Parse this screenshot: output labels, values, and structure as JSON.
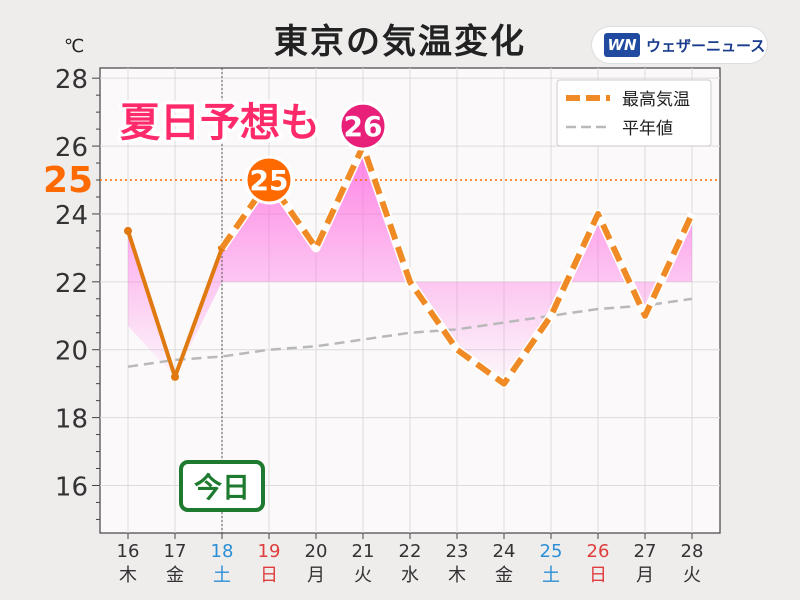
{
  "title": "東京の気温変化",
  "unit": "℃",
  "brand": {
    "logo": "WN",
    "name": "ウェザーニュース"
  },
  "callout": "夏日予想も",
  "today_label": "今日",
  "threshold": {
    "value": 25,
    "label": "25"
  },
  "peak_badges": [
    {
      "index": 3,
      "label": "25"
    },
    {
      "index": 5,
      "label": "26"
    }
  ],
  "colors": {
    "observed": "#e07a10",
    "forecast": "#f08a24",
    "normal": "#b9b9b9",
    "threshold": "#ff6a00",
    "highlight": "#ff66e0",
    "badge25": "#ff6a00",
    "badge26": "#e8207a",
    "today": "#1e7a2e",
    "callout": "#ff2a6a",
    "saturday": "#2b8fd6",
    "sunday": "#e03c3c"
  },
  "chart_data": {
    "type": "line",
    "categories": [
      "16",
      "17",
      "18",
      "19",
      "20",
      "21",
      "22",
      "23",
      "24",
      "25",
      "26",
      "27",
      "28"
    ],
    "weekdays": [
      "木",
      "金",
      "土",
      "日",
      "月",
      "火",
      "水",
      "木",
      "金",
      "土",
      "日",
      "月",
      "火"
    ],
    "weekday_types": [
      "",
      "",
      "sat",
      "sun",
      "",
      "",
      "",
      "",
      "",
      "sat",
      "sun",
      "",
      ""
    ],
    "today_index": 2,
    "series": [
      {
        "name": "最高気温",
        "values": [
          23.5,
          19.2,
          23.0,
          25.0,
          23.0,
          26.0,
          22.0,
          20.0,
          19.0,
          21.0,
          24.0,
          21.0,
          24.0
        ]
      },
      {
        "name": "平年値",
        "values": [
          19.5,
          19.7,
          19.8,
          20.0,
          20.1,
          20.3,
          20.5,
          20.6,
          20.8,
          21.0,
          21.2,
          21.3,
          21.5
        ]
      }
    ],
    "ylim": [
      14.6,
      28.3
    ],
    "yticks": [
      16,
      18,
      20,
      22,
      24,
      26,
      28
    ],
    "grid": true,
    "legend": "top-right"
  }
}
